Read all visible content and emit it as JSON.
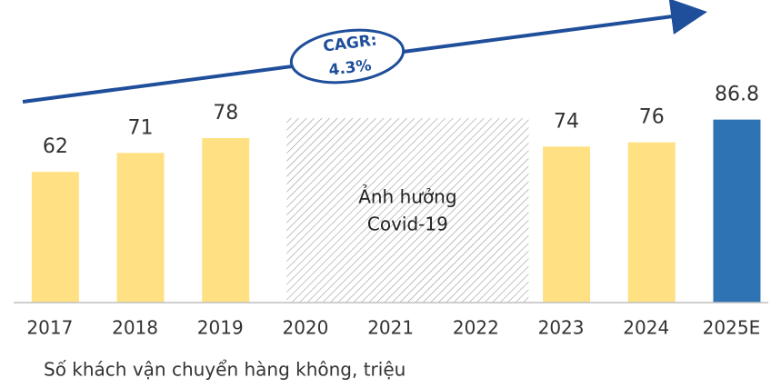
{
  "chart_data": {
    "type": "bar",
    "categories": [
      "2017",
      "2018",
      "2019",
      "2020",
      "2021",
      "2022",
      "2023",
      "2024",
      "2025E"
    ],
    "values": [
      62,
      71,
      78,
      null,
      null,
      null,
      74,
      76,
      86.8
    ],
    "colors": [
      "#ffe083",
      "#ffe083",
      "#ffe083",
      null,
      null,
      null,
      "#ffe083",
      "#ffe083",
      "#2e74b5"
    ],
    "hatch_note": [
      "Ảnh hưởng",
      "Covid-19"
    ],
    "cagr": {
      "label": "CAGR:",
      "value": "4.3%"
    },
    "footnote": "Số khách vận chuyển hàng không, triệu"
  }
}
